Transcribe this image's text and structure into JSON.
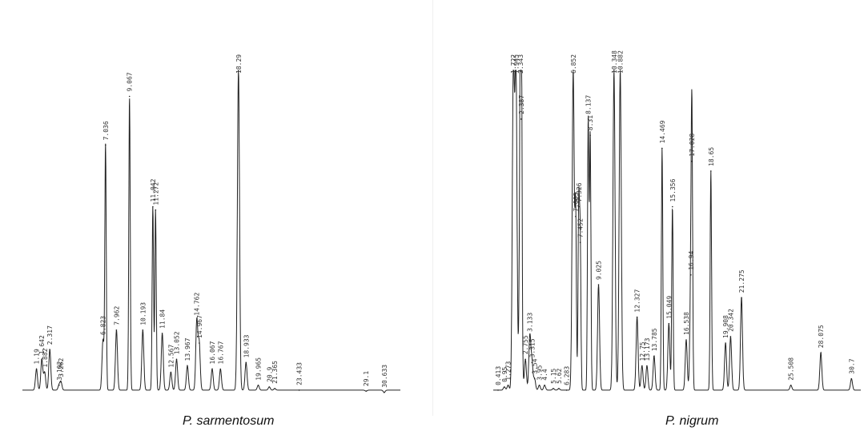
{
  "chart_data": [
    {
      "type": "line",
      "title": "P. sarmentosum",
      "xlim": [
        0,
        32
      ],
      "ylim": [
        0,
        100
      ],
      "baseline": 1.5,
      "peaks": [
        {
          "x": 1.19,
          "y": 8,
          "label": "1.19"
        },
        {
          "x": 1.642,
          "y": 11,
          "label": "1.642"
        },
        {
          "x": 1.882,
          "y": 7,
          "label": "1.882"
        },
        {
          "x": 2.317,
          "y": 14,
          "label": "2.317"
        },
        {
          "x": 3.102,
          "y": 3,
          "label": "3.102"
        },
        {
          "x": 3.262,
          "y": 4,
          "label": "3.262"
        },
        {
          "x": 6.823,
          "y": 17,
          "label": "6.823"
        },
        {
          "x": 7.036,
          "y": 77,
          "label": "7.036"
        },
        {
          "x": 7.962,
          "y": 20,
          "label": "7.962"
        },
        {
          "x": 9.067,
          "y": 92,
          "label": "9.067"
        },
        {
          "x": 10.193,
          "y": 20,
          "label": "10.193"
        },
        {
          "x": 11.042,
          "y": 58,
          "label": "11.042"
        },
        {
          "x": 11.272,
          "y": 57,
          "label": "11.272"
        },
        {
          "x": 11.84,
          "y": 19,
          "label": "11.84"
        },
        {
          "x": 12.567,
          "y": 7,
          "label": "12.567"
        },
        {
          "x": 13.052,
          "y": 11,
          "label": "13.052"
        },
        {
          "x": 13.967,
          "y": 9,
          "label": "13.967"
        },
        {
          "x": 14.762,
          "y": 23,
          "label": "14.762"
        },
        {
          "x": 14.967,
          "y": 16,
          "label": "14.967"
        },
        {
          "x": 16.067,
          "y": 8,
          "label": "16.067"
        },
        {
          "x": 16.767,
          "y": 8,
          "label": "16.767"
        },
        {
          "x": 18.29,
          "y": 100,
          "label": "18.29",
          "clipped": true
        },
        {
          "x": 18.933,
          "y": 10,
          "label": "18.933"
        },
        {
          "x": 19.965,
          "y": 3,
          "label": "19.965"
        },
        {
          "x": 20.9,
          "y": 2.5,
          "label": "20.9"
        },
        {
          "x": 21.365,
          "y": 2,
          "label": "21.365"
        },
        {
          "x": 23.433,
          "y": 1.5,
          "label": "23.433"
        },
        {
          "x": 29.1,
          "y": 1.2,
          "label": "29.1"
        },
        {
          "x": 30.633,
          "y": 0.8,
          "label": "30.633"
        }
      ]
    },
    {
      "type": "line",
      "title": "P. nigrum",
      "xlim": [
        0,
        31.5
      ],
      "ylim": [
        0,
        100
      ],
      "baseline": 1.5,
      "peaks": [
        {
          "x": 0.413,
          "y": 1.5,
          "label": "0.413"
        },
        {
          "x": 0.95,
          "y": 2.5,
          "label": "0.95"
        },
        {
          "x": 1.273,
          "y": 3,
          "label": "1.273"
        },
        {
          "x": 1.722,
          "y": 100,
          "label": "1.722",
          "clipped": true
        },
        {
          "x": 1.945,
          "y": 100,
          "label": "1.945",
          "clipped": true
        },
        {
          "x": 2.343,
          "y": 100,
          "label": "2.343",
          "clipped": true
        },
        {
          "x": 2.387,
          "y": 85,
          "label": "2.387"
        },
        {
          "x": 2.755,
          "y": 11,
          "label": "2.755"
        },
        {
          "x": 3.133,
          "y": 18,
          "label": "3.133"
        },
        {
          "x": 3.315,
          "y": 10,
          "label": "3.315"
        },
        {
          "x": 3.54,
          "y": 5,
          "label": "3.54"
        },
        {
          "x": 3.95,
          "y": 3,
          "label": "3.95"
        },
        {
          "x": 4.4,
          "y": 3,
          "label": "4.4"
        },
        {
          "x": 5.15,
          "y": 2,
          "label": "5.15"
        },
        {
          "x": 5.62,
          "y": 2,
          "label": "5.62"
        },
        {
          "x": 6.283,
          "y": 1.5,
          "label": "6.283"
        },
        {
          "x": 6.852,
          "y": 100,
          "label": "6.852",
          "clipped": true
        },
        {
          "x": 7.063,
          "y": 55,
          "label": "7.063"
        },
        {
          "x": 7.326,
          "y": 58,
          "label": "7.326"
        },
        {
          "x": 7.452,
          "y": 47,
          "label": "7.452"
        },
        {
          "x": 8.137,
          "y": 85,
          "label": "8.137"
        },
        {
          "x": 8.31,
          "y": 80,
          "label": "8.31"
        },
        {
          "x": 9.025,
          "y": 34,
          "label": "9.025"
        },
        {
          "x": 10.348,
          "y": 100,
          "label": "10.348",
          "clipped": true
        },
        {
          "x": 10.882,
          "y": 100,
          "label": "10.882",
          "clipped": true
        },
        {
          "x": 12.327,
          "y": 24,
          "label": "12.327"
        },
        {
          "x": 12.75,
          "y": 9,
          "label": "12.75"
        },
        {
          "x": 13.173,
          "y": 9,
          "label": "13.173"
        },
        {
          "x": 13.785,
          "y": 12,
          "label": "13.785"
        },
        {
          "x": 14.469,
          "y": 76,
          "label": "14.469"
        },
        {
          "x": 15.049,
          "y": 22,
          "label": "15.049"
        },
        {
          "x": 15.356,
          "y": 58,
          "label": "15.356"
        },
        {
          "x": 16.538,
          "y": 17,
          "label": "16.538"
        },
        {
          "x": 16.94,
          "y": 37,
          "label": "16.94"
        },
        {
          "x": 17.028,
          "y": 72,
          "label": "17.028"
        },
        {
          "x": 18.65,
          "y": 69,
          "label": "18.65"
        },
        {
          "x": 19.908,
          "y": 16,
          "label": "19.908"
        },
        {
          "x": 20.342,
          "y": 18,
          "label": "20.342"
        },
        {
          "x": 21.275,
          "y": 30,
          "label": "21.275"
        },
        {
          "x": 25.508,
          "y": 3,
          "label": "25.508"
        },
        {
          "x": 28.075,
          "y": 13,
          "label": "28.075"
        },
        {
          "x": 30.7,
          "y": 5,
          "label": "30.7"
        }
      ]
    }
  ],
  "captions": {
    "left": "P. sarmentosum",
    "right": "P. nigrum"
  }
}
